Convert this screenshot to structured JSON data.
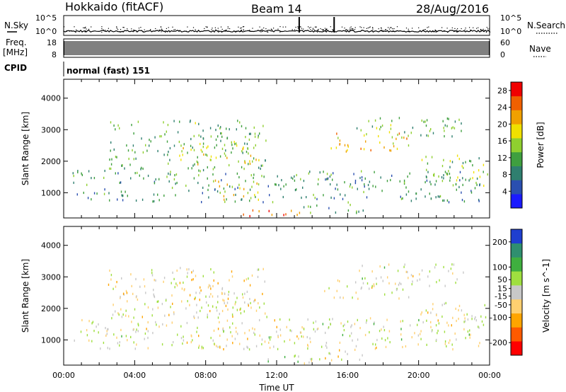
{
  "header": {
    "station": "Hokkaido (fitACF)",
    "beam": "Beam 14",
    "date": "28/Aug/2016"
  },
  "panels": {
    "nsky_label": "N.Sky",
    "nsearch_label": "N.Search",
    "noise_ticks": [
      "10^5",
      "10^0"
    ],
    "freq_label": "Freq.",
    "freq_unit": "[MHz]",
    "freq_ticks": [
      "18",
      "8"
    ],
    "nave_label": "Nave",
    "nave_ticks": [
      "60",
      "0"
    ],
    "cpid_label": "CPID",
    "cpid_value": "normal (fast) 151"
  },
  "colors": {
    "power_scale": [
      "#1a1aff",
      "#2a4fb0",
      "#2f7f6f",
      "#3f9f3f",
      "#8fcf2f",
      "#f0e000",
      "#f0a000",
      "#f06000",
      "#f00000"
    ],
    "velocity_scale": [
      "#ff0000",
      "#ff5a00",
      "#ffa500",
      "#ffd070",
      "#c8c8c8",
      "#9fdf3f",
      "#3faf3f",
      "#2f8f6f",
      "#1f3fcf"
    ]
  },
  "chart_data": [
    {
      "type": "heatmap",
      "title": "Power",
      "xlabel": "Time UT",
      "ylabel": "Slant Range [km]",
      "x_ticks": [
        "00:00",
        "04:00",
        "08:00",
        "12:00",
        "16:00",
        "20:00",
        "00:00"
      ],
      "y_ticks": [
        1000,
        2000,
        3000,
        4000
      ],
      "ylim": [
        200,
        4600
      ],
      "colorbar_label": "Power [dB]",
      "colorbar_ticks": [
        4,
        8,
        12,
        16,
        20,
        24,
        28
      ],
      "colorbar_range": [
        0,
        30
      ],
      "scatter_regions": [
        {
          "t": [
            0.5,
            23.5
          ],
          "r": [
            700,
            1700
          ],
          "level": 10
        },
        {
          "t": [
            2.5,
            11.5
          ],
          "r": [
            1700,
            3300
          ],
          "level": 12
        },
        {
          "t": [
            6.5,
            11.0
          ],
          "r": [
            1900,
            2600
          ],
          "level": 18
        },
        {
          "t": [
            8.5,
            11.0
          ],
          "r": [
            700,
            1400
          ],
          "level": 18
        },
        {
          "t": [
            10.0,
            14.0
          ],
          "r": [
            250,
            500
          ],
          "level": 26
        },
        {
          "t": [
            14.5,
            19.5
          ],
          "r": [
            2300,
            2900
          ],
          "level": 20
        },
        {
          "t": [
            16.5,
            22.5
          ],
          "r": [
            2700,
            3400
          ],
          "level": 12
        },
        {
          "t": [
            13.5,
            17.0
          ],
          "r": [
            350,
            700
          ],
          "level": 10
        },
        {
          "t": [
            20.0,
            24.0
          ],
          "r": [
            1200,
            2200
          ],
          "level": 14
        }
      ]
    },
    {
      "type": "heatmap",
      "title": "Velocity",
      "xlabel": "Time UT",
      "ylabel": "Slant Range [km]",
      "x_ticks": [
        "00:00",
        "04:00",
        "08:00",
        "12:00",
        "16:00",
        "20:00",
        "00:00"
      ],
      "y_ticks": [
        1000,
        2000,
        3000,
        4000
      ],
      "ylim": [
        200,
        4600
      ],
      "colorbar_label": "Velocity [m s^-1]",
      "colorbar_ticks": [
        -200,
        -100,
        -50,
        -15,
        15,
        50,
        100,
        200
      ],
      "colorbar_range": [
        -250,
        250
      ],
      "scatter_regions": [
        {
          "t": [
            0.5,
            23.5
          ],
          "r": [
            700,
            1700
          ],
          "level": 0
        },
        {
          "t": [
            2.5,
            11.5
          ],
          "r": [
            1700,
            3300
          ],
          "level": -20
        },
        {
          "t": [
            6.5,
            11.0
          ],
          "r": [
            1900,
            2600
          ],
          "level": -30
        },
        {
          "t": [
            8.5,
            11.0
          ],
          "r": [
            700,
            1400
          ],
          "level": -25
        },
        {
          "t": [
            10.0,
            14.0
          ],
          "r": [
            250,
            500
          ],
          "level": 40
        },
        {
          "t": [
            14.5,
            19.5
          ],
          "r": [
            2300,
            2900
          ],
          "level": 0
        },
        {
          "t": [
            16.5,
            22.5
          ],
          "r": [
            2700,
            3400
          ],
          "level": 0
        },
        {
          "t": [
            13.5,
            17.0
          ],
          "r": [
            350,
            700
          ],
          "level": -40
        },
        {
          "t": [
            20.0,
            24.0
          ],
          "r": [
            1200,
            2200
          ],
          "level": -5
        }
      ]
    }
  ]
}
